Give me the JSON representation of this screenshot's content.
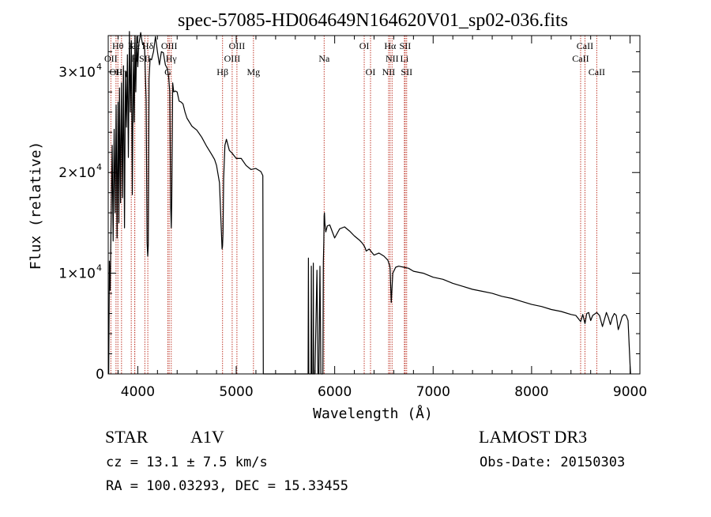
{
  "chart_data": {
    "type": "line",
    "title": "spec-57085-HD064649N164620V01_sp02-036.fits",
    "xlabel": "Wavelength (Å)",
    "ylabel": "Flux (relative)",
    "xlim": [
      3700,
      9100
    ],
    "ylim": [
      0,
      33600
    ],
    "x_ticks": [
      {
        "value": 4000,
        "label": "4000"
      },
      {
        "value": 5000,
        "label": "5000"
      },
      {
        "value": 6000,
        "label": "6000"
      },
      {
        "value": 7000,
        "label": "7000"
      },
      {
        "value": 8000,
        "label": "8000"
      },
      {
        "value": 9000,
        "label": "9000"
      }
    ],
    "y_ticks": [
      {
        "value": 0,
        "label": "0"
      },
      {
        "value": 10000,
        "label": "1×10",
        "exp": "4"
      },
      {
        "value": 20000,
        "label": "2×10",
        "exp": "4"
      },
      {
        "value": 30000,
        "label": "3×10",
        "exp": "4"
      }
    ],
    "series": [
      {
        "name": "spectrum",
        "color": "#000000",
        "x": [
          3705,
          3712,
          3720,
          3730,
          3740,
          3750,
          3760,
          3770,
          3780,
          3790,
          3800,
          3808,
          3815,
          3825,
          3835,
          3845,
          3855,
          3865,
          3875,
          3885,
          3895,
          3905,
          3915,
          3925,
          3935,
          3945,
          3955,
          3965,
          3972,
          3980,
          3990,
          4000,
          4010,
          4020,
          4030,
          4040,
          4050,
          4060,
          4070,
          4085,
          4095,
          4101,
          4107,
          4115,
          4125,
          4140,
          4160,
          4180,
          4200,
          4220,
          4240,
          4260,
          4280,
          4300,
          4315,
          4325,
          4335,
          4340,
          4345,
          4355,
          4365,
          4380,
          4400,
          4420,
          4440,
          4460,
          4480,
          4500,
          4550,
          4600,
          4650,
          4700,
          4750,
          4780,
          4800,
          4830,
          4850,
          4856,
          4861,
          4866,
          4872,
          4885,
          4900,
          4930,
          4960,
          5000,
          5050,
          5100,
          5150,
          5200,
          5250,
          5270,
          5275,
          5280,
          5700,
          5730,
          5733,
          5737,
          5740,
          5750,
          5760,
          5763,
          5767,
          5770,
          5775,
          5780,
          5783,
          5786,
          5790,
          5800,
          5820,
          5830,
          5840,
          5850,
          5860,
          5870,
          5880,
          5885,
          5890,
          5893,
          5896,
          5900,
          5910,
          5925,
          5950,
          6000,
          6050,
          6100,
          6150,
          6200,
          6250,
          6280,
          6300,
          6310,
          6320,
          6350,
          6400,
          6450,
          6500,
          6540,
          6550,
          6557,
          6563,
          6569,
          6575,
          6590,
          6620,
          6650,
          6700,
          6750,
          6800,
          6900,
          7000,
          7100,
          7200,
          7300,
          7400,
          7500,
          7600,
          7700,
          7800,
          7900,
          8000,
          8100,
          8200,
          8300,
          8400,
          8450,
          8498,
          8520,
          8542,
          8560,
          8580,
          8600,
          8620,
          8662,
          8690,
          8720,
          8740,
          8760,
          8780,
          8800,
          8820,
          8840,
          8860,
          8880,
          8900,
          8920,
          8940,
          8960,
          8980,
          9000,
          9005
        ],
        "y": [
          0,
          11200,
          8300,
          15500,
          22700,
          13200,
          24300,
          16000,
          26700,
          13500,
          27000,
          15000,
          28400,
          17000,
          28900,
          17500,
          30600,
          14500,
          30000,
          24500,
          31700,
          21500,
          34000,
          26000,
          33100,
          17800,
          31700,
          25000,
          33600,
          28000,
          33500,
          30500,
          32700,
          33300,
          33900,
          33200,
          32700,
          32900,
          32200,
          27200,
          13000,
          11700,
          12800,
          29300,
          31300,
          31200,
          32000,
          33500,
          32000,
          30700,
          32000,
          31900,
          30700,
          30300,
          29400,
          28000,
          16500,
          14500,
          17000,
          28900,
          28000,
          28100,
          28000,
          27100,
          27000,
          26800,
          26000,
          25400,
          24600,
          24200,
          23500,
          22600,
          21800,
          21300,
          20700,
          19000,
          14000,
          12400,
          12700,
          14000,
          19400,
          22700,
          23300,
          22200,
          21900,
          21400,
          21400,
          20700,
          20300,
          20400,
          20100,
          19700,
          0,
          0,
          0,
          0,
          11500,
          0,
          0,
          0,
          0,
          10700,
          0,
          0,
          0,
          0,
          11000,
          0,
          0,
          0,
          10300,
          0,
          0,
          10700,
          0,
          0,
          0,
          11100,
          13100,
          15700,
          16000,
          15000,
          14100,
          14700,
          14800,
          13500,
          14400,
          14600,
          14200,
          13700,
          13300,
          13000,
          12700,
          12500,
          12200,
          12400,
          11800,
          12000,
          11700,
          11300,
          11000,
          10800,
          10500,
          8600,
          7100,
          10000,
          10600,
          10700,
          10600,
          10500,
          10200,
          10000,
          9600,
          9400,
          9000,
          8700,
          8400,
          8200,
          8000,
          7700,
          7500,
          7200,
          6900,
          6700,
          6400,
          6200,
          5900,
          5800,
          5200,
          5900,
          5000,
          6000,
          6100,
          5300,
          5800,
          6100,
          5800,
          4700,
          5400,
          6100,
          5600,
          4900,
          5600,
          6000,
          5800,
          4400,
          5000,
          5700,
          5900,
          5800,
          5300,
          1000,
          0
        ]
      }
    ],
    "line_markers": [
      {
        "name": "OII",
        "wl": 3727,
        "row": 2
      },
      {
        "name": "Hθ",
        "wl": 3798,
        "row": 1
      },
      {
        "name": "OII",
        "wl": 3779,
        "row": 3
      },
      {
        "name": "Hη",
        "wl": 3835,
        "row": 3
      },
      {
        "name": "K",
        "wl": 3934,
        "row": 1
      },
      {
        "name": "H",
        "wl": 3969,
        "row": 2
      },
      {
        "name": "Hε",
        "wl": 3970,
        "row": 1
      },
      {
        "name": "SII",
        "wl": 4072,
        "row": 2
      },
      {
        "name": "Hδ",
        "wl": 4102,
        "row": 1
      },
      {
        "name": "OIII",
        "wl": 4319,
        "row": 1
      },
      {
        "name": "Hγ",
        "wl": 4340,
        "row": 2
      },
      {
        "name": "G",
        "wl": 4305,
        "row": 3
      },
      {
        "name": "Hβ",
        "wl": 4861,
        "row": 3
      },
      {
        "name": "OIII",
        "wl": 4959,
        "row": 2
      },
      {
        "name": "OIII",
        "wl": 5007,
        "row": 1
      },
      {
        "name": "Mg",
        "wl": 5175,
        "row": 3
      },
      {
        "name": "Na",
        "wl": 5893,
        "row": 2
      },
      {
        "name": "OI",
        "wl": 6300,
        "row": 1
      },
      {
        "name": "OI",
        "wl": 6364,
        "row": 3
      },
      {
        "name": "NII",
        "wl": 6548,
        "row": 3
      },
      {
        "name": "Hα",
        "wl": 6563,
        "row": 1
      },
      {
        "name": "NII",
        "wl": 6583,
        "row": 2
      },
      {
        "name": "Li",
        "wl": 6708,
        "row": 2
      },
      {
        "name": "SII",
        "wl": 6716,
        "row": 1
      },
      {
        "name": "SII",
        "wl": 6731,
        "row": 3
      },
      {
        "name": "CaII",
        "wl": 8498,
        "row": 2
      },
      {
        "name": "CaII",
        "wl": 8542,
        "row": 1
      },
      {
        "name": "CaII",
        "wl": 8662,
        "row": 3
      }
    ],
    "marker_color": "#c0392b"
  },
  "info": {
    "class": "STAR",
    "subclass": "A1V",
    "survey": "LAMOST DR3",
    "cz": "cz = 13.1 ± 7.5 km/s",
    "obs_date": "Obs-Date: 20150303",
    "radec": "RA = 100.03293, DEC =  15.33455"
  }
}
